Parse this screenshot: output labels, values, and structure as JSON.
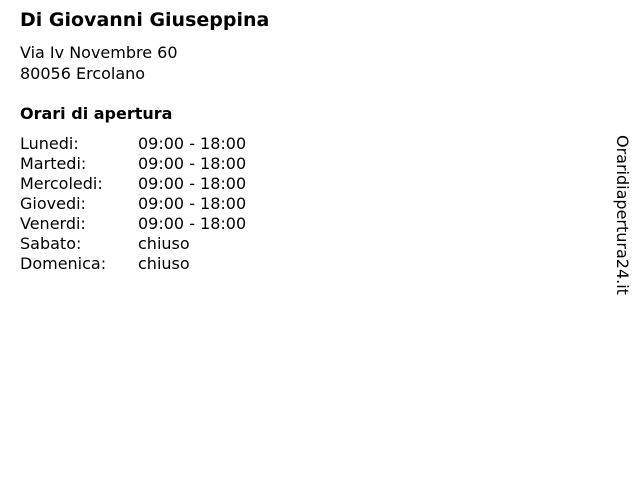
{
  "business": {
    "name": "Di Giovanni Giuseppina",
    "address_line1": "Via Iv Novembre 60",
    "address_line2": "80056 Ercolano"
  },
  "hours_heading": "Orari di apertura",
  "hours": [
    {
      "day": "Lunedi:",
      "time": "09:00 - 18:00"
    },
    {
      "day": "Martedi:",
      "time": "09:00 - 18:00"
    },
    {
      "day": "Mercoledi:",
      "time": "09:00 - 18:00"
    },
    {
      "day": "Giovedi:",
      "time": "09:00 - 18:00"
    },
    {
      "day": "Venerdi:",
      "time": "09:00 - 18:00"
    },
    {
      "day": "Sabato:",
      "time": "chiuso"
    },
    {
      "day": "Domenica:",
      "time": "chiuso"
    }
  ],
  "site_name": "Oraridiapertura24.it"
}
